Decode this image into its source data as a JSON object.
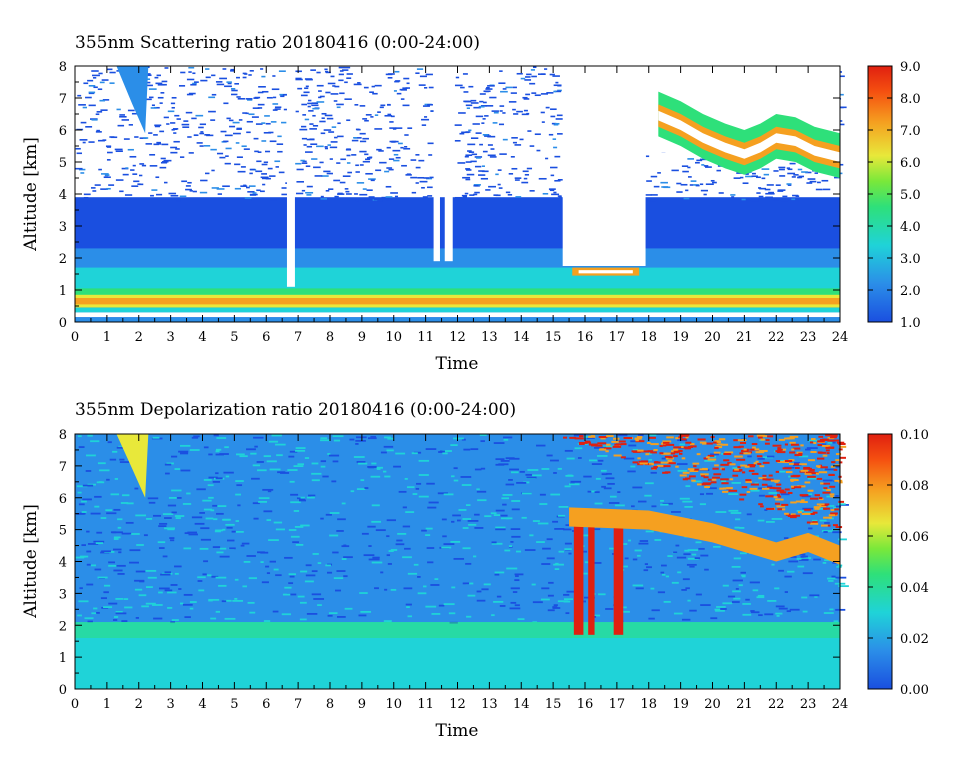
{
  "chart_data": [
    {
      "type": "heatmap",
      "title": "355nm Scattering ratio  20180416 (0:00-24:00)",
      "xlabel": "Time",
      "ylabel": "Altitude [km]",
      "xlim": [
        0,
        24
      ],
      "ylim": [
        0,
        8
      ],
      "xticks": [
        "0",
        "1",
        "2",
        "3",
        "4",
        "5",
        "6",
        "7",
        "8",
        "9",
        "10",
        "11",
        "12",
        "13",
        "14",
        "15",
        "16",
        "17",
        "18",
        "19",
        "20",
        "21",
        "22",
        "23",
        "24"
      ],
      "yticks": [
        "0",
        "1",
        "2",
        "3",
        "4",
        "5",
        "6",
        "7",
        "8"
      ],
      "colorbar": {
        "range": [
          1.0,
          9.0
        ],
        "ticks": [
          "1.0",
          "2.0",
          "3.0",
          "4.0",
          "5.0",
          "6.0",
          "7.0",
          "8.0",
          "9.0"
        ]
      },
      "features": {
        "boundary_layer_top_km": 0.7,
        "dense_cloud_times": [
          15.5,
          17.8
        ],
        "cirrus_time_range": [
          18,
          24
        ]
      }
    },
    {
      "type": "heatmap",
      "title": "355nm Depolarization ratio  20180416 (0:00-24:00)",
      "xlabel": "Time",
      "ylabel": "Altitude [km]",
      "xlim": [
        0,
        24
      ],
      "ylim": [
        0,
        8
      ],
      "xticks": [
        "0",
        "1",
        "2",
        "3",
        "4",
        "5",
        "6",
        "7",
        "8",
        "9",
        "10",
        "11",
        "12",
        "13",
        "14",
        "15",
        "16",
        "17",
        "18",
        "19",
        "20",
        "21",
        "22",
        "23",
        "24"
      ],
      "yticks": [
        "0",
        "1",
        "2",
        "3",
        "4",
        "5",
        "6",
        "7",
        "8"
      ],
      "colorbar": {
        "range": [
          0.0,
          0.1
        ],
        "ticks": [
          "0.00",
          "0.02",
          "0.04",
          "0.06",
          "0.08",
          "0.10"
        ]
      },
      "features": {
        "boundary_layer_top_km": 2.0,
        "high_depol_time_range": [
          15,
          24
        ]
      }
    }
  ]
}
